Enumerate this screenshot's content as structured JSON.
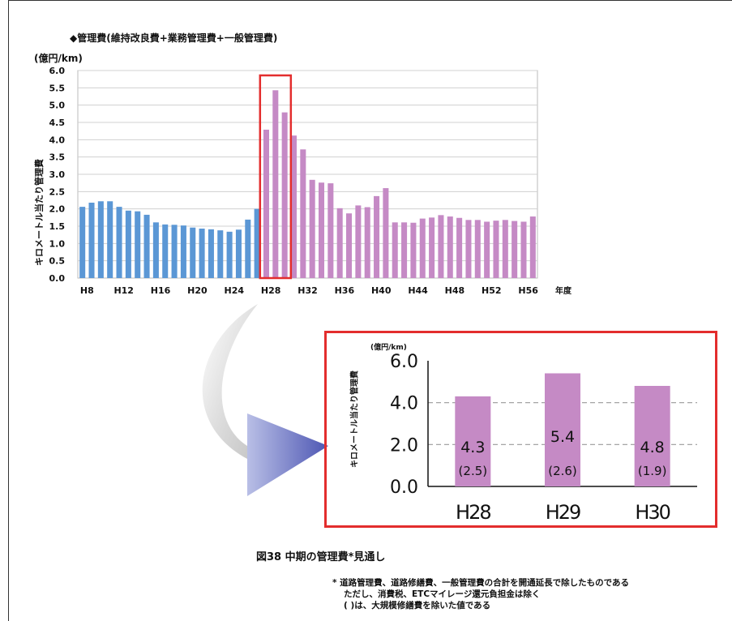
{
  "header": {
    "title": "◆管理費(維持改良費+業務管理費+一般管理費)",
    "unit": "(億円/km)"
  },
  "chart_data": [
    {
      "type": "bar",
      "ylabel": "キロメートル当たり管理費",
      "xlabel": "年度",
      "ylim": [
        0,
        6.0
      ],
      "yticks": [
        "0.0",
        "0.5",
        "1.0",
        "1.5",
        "2.0",
        "2.5",
        "3.0",
        "3.5",
        "4.0",
        "4.5",
        "5.0",
        "5.5",
        "6.0"
      ],
      "xtick_labels": [
        "H8",
        "H12",
        "H16",
        "H20",
        "H24",
        "H28",
        "H32",
        "H36",
        "H40",
        "H44",
        "H48",
        "H52",
        "H56"
      ],
      "grid": true,
      "categories": [
        "H8",
        "H9",
        "H10",
        "H11",
        "H12",
        "H13",
        "H14",
        "H15",
        "H16",
        "H17",
        "H18",
        "H19",
        "H20",
        "H21",
        "H22",
        "H23",
        "H24",
        "H25",
        "H26",
        "H27",
        "H28",
        "H29",
        "H30",
        "H31",
        "H32",
        "H33",
        "H34",
        "H35",
        "H36",
        "H37",
        "H38",
        "H39",
        "H40",
        "H41",
        "H42",
        "H43",
        "H44",
        "H45",
        "H46",
        "H47",
        "H48",
        "H49",
        "H50",
        "H51",
        "H52",
        "H53",
        "H54",
        "H55",
        "H56",
        "H57"
      ],
      "series": [
        {
          "values": [
            2.06,
            2.18,
            2.22,
            2.22,
            2.06,
            1.95,
            1.93,
            1.83,
            1.61,
            1.55,
            1.54,
            1.52,
            1.46,
            1.43,
            1.41,
            1.38,
            1.34,
            1.4,
            1.69,
            2.0,
            null,
            null,
            null,
            null,
            null,
            null,
            null,
            null,
            null,
            null,
            null,
            null,
            null,
            null,
            null,
            null,
            null,
            null,
            null,
            null,
            null,
            null,
            null,
            null,
            null,
            null,
            null,
            null,
            null,
            null
          ],
          "color": "#5b97d5"
        },
        {
          "values": [
            null,
            null,
            null,
            null,
            null,
            null,
            null,
            null,
            null,
            null,
            null,
            null,
            null,
            null,
            null,
            null,
            null,
            null,
            null,
            null,
            4.29,
            5.43,
            4.79,
            4.12,
            3.72,
            2.84,
            2.76,
            2.74,
            2.02,
            1.87,
            2.1,
            2.05,
            2.37,
            2.6,
            1.61,
            1.61,
            1.6,
            1.72,
            1.75,
            1.82,
            1.78,
            1.74,
            1.68,
            1.68,
            1.63,
            1.66,
            1.68,
            1.65,
            1.63,
            1.78
          ],
          "color": "#c58ac5"
        }
      ],
      "highlight": [
        "H28",
        "H29",
        "H30"
      ],
      "highlight_color": "#e32d2d"
    },
    {
      "type": "bar",
      "unit": "(億円/km)",
      "ylabel": "キロメートル当たり管理費",
      "ylim": [
        0,
        6.0
      ],
      "yticks": [
        "0.0",
        "2.0",
        "4.0",
        "6.0"
      ],
      "categories": [
        "H28",
        "H29",
        "H30"
      ],
      "values": [
        4.3,
        5.4,
        4.8
      ],
      "value_labels": [
        "4.3",
        "5.4",
        "4.8"
      ],
      "sub_labels": [
        "(2.5)",
        "(2.6)",
        "(1.9)"
      ],
      "color": "#c58ac5"
    }
  ],
  "caption": "図38 中期の管理費*見通し",
  "note": {
    "line1": "* 道路管理費、道路修繕費、一般管理費の合計を開通延長で除したものである",
    "line2": "ただし、消費税、ETCマイレージ還元負担金は除く",
    "line3": "( )は、大規模修繕費を除いた値である"
  }
}
